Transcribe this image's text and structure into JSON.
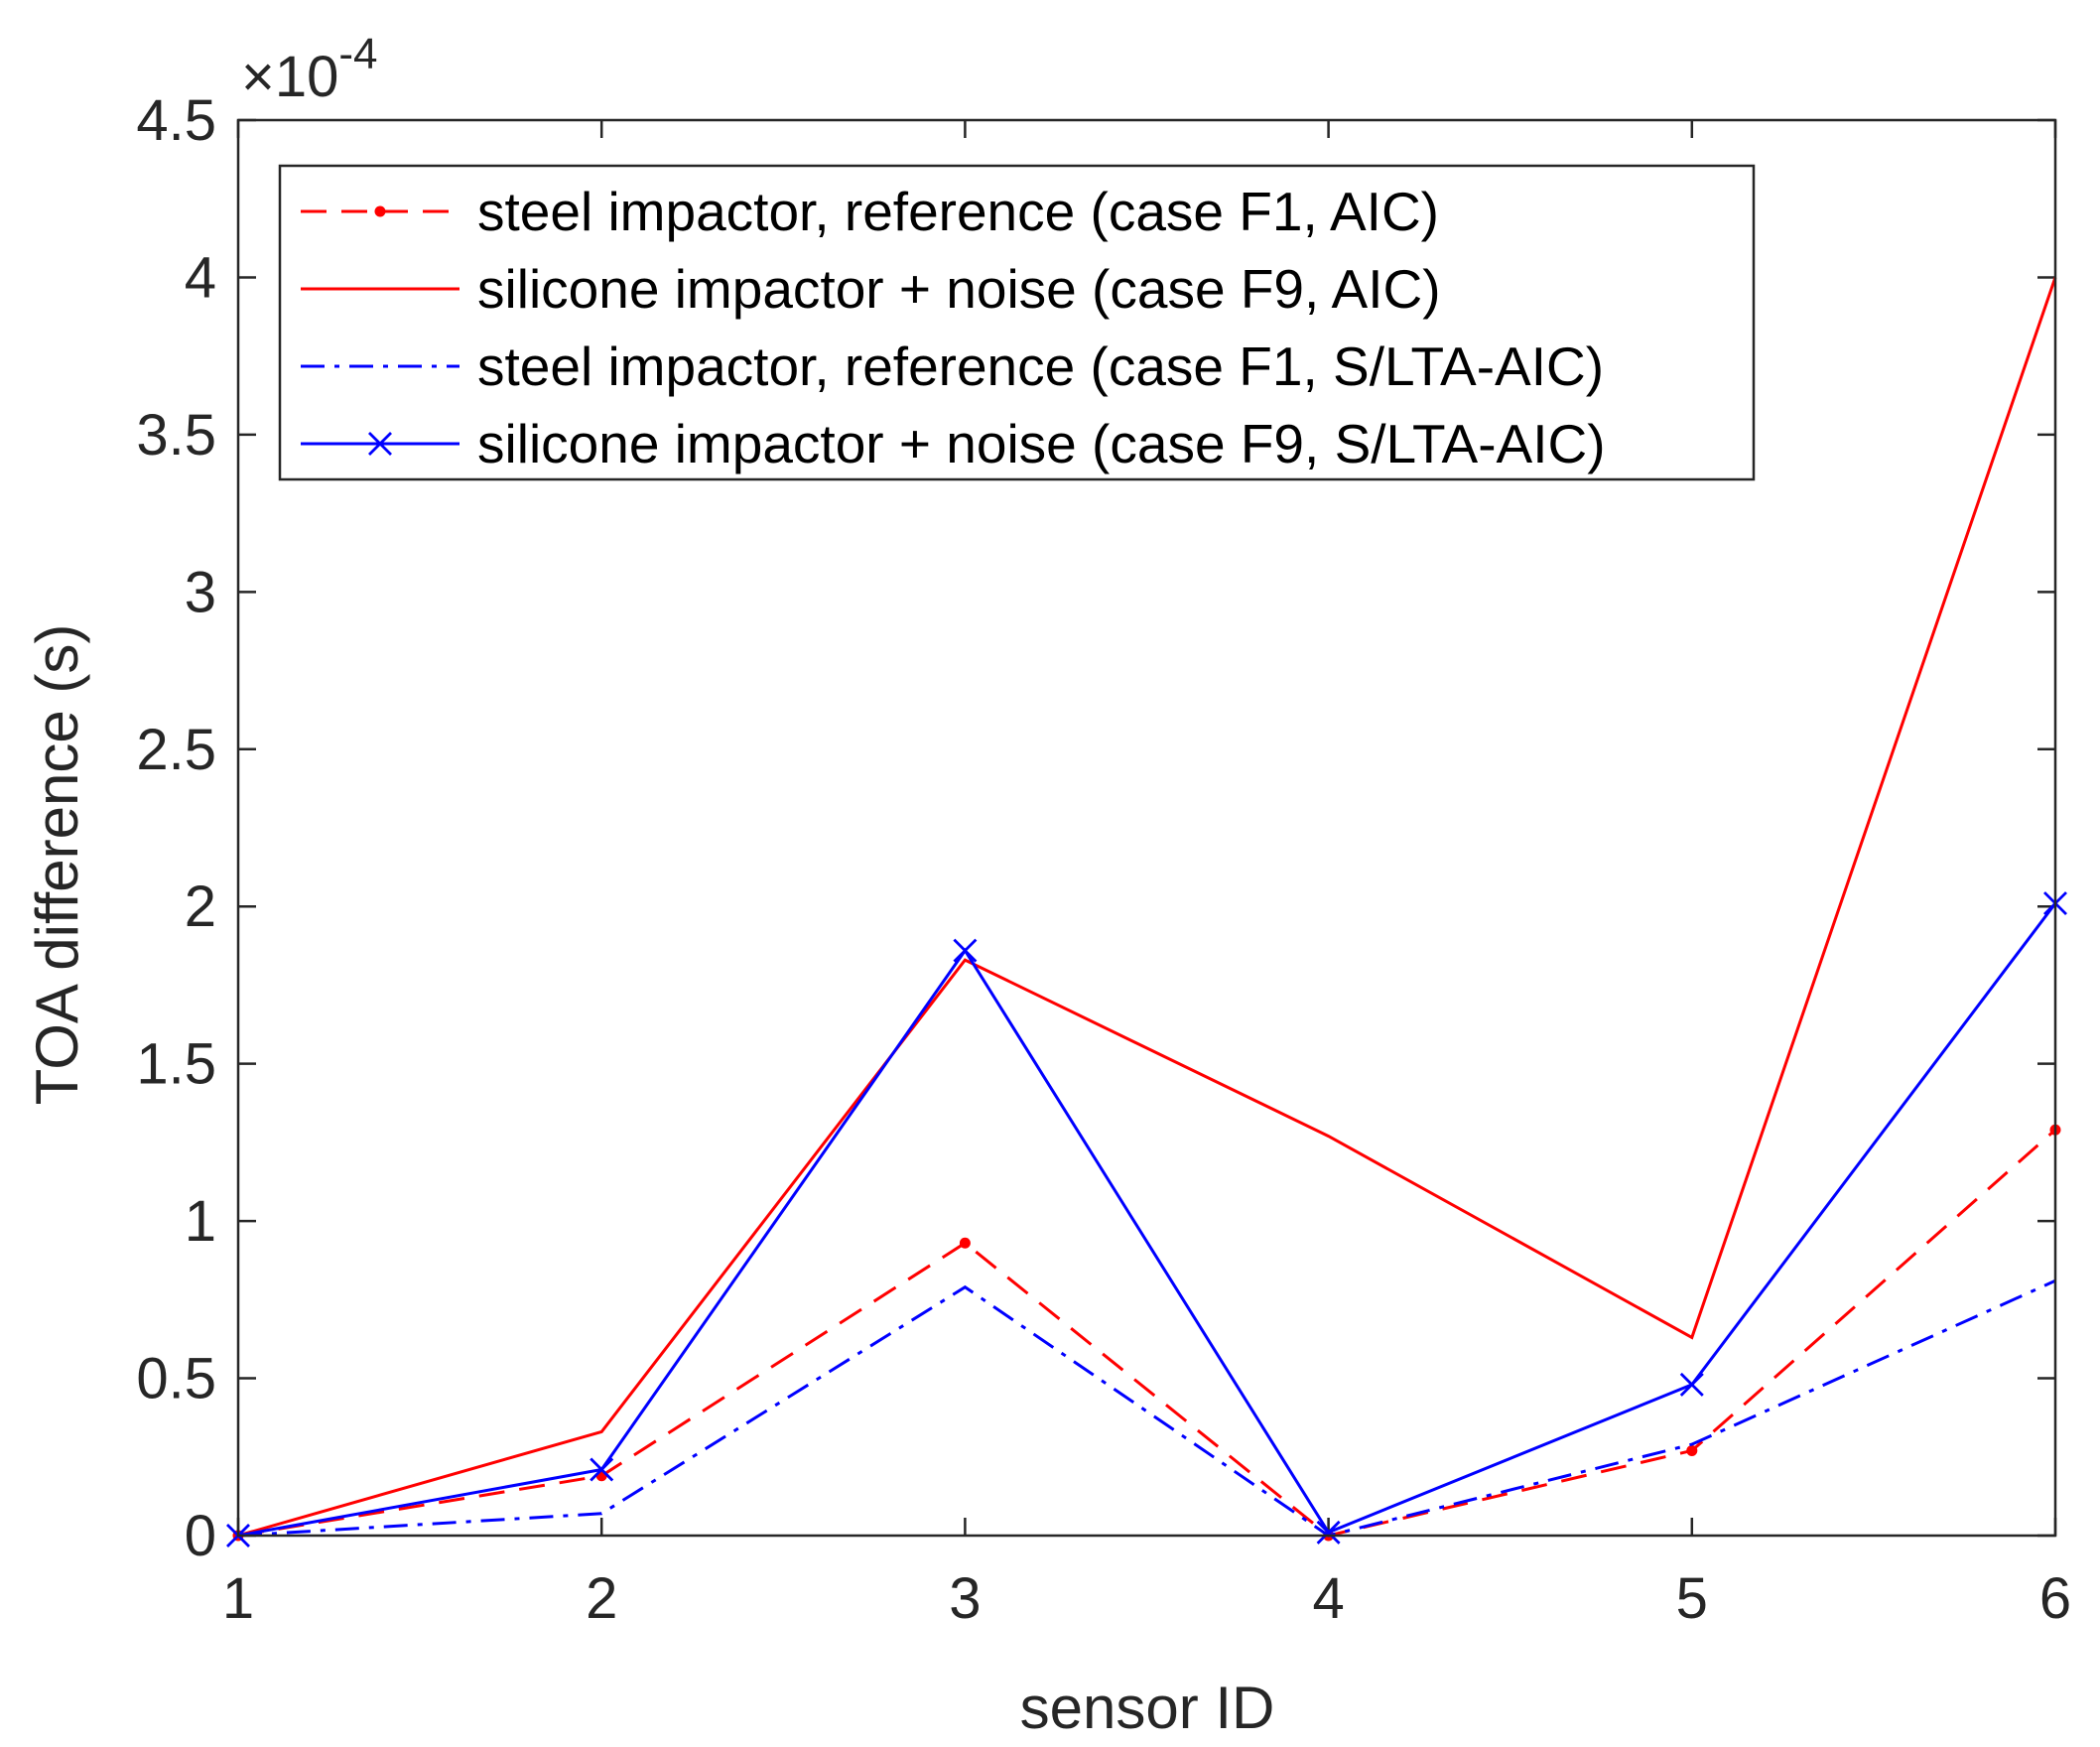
{
  "chart_data": {
    "type": "line",
    "xlabel": "sensor ID",
    "ylabel": "TOA difference (s)",
    "x_ticks": [
      "1",
      "2",
      "3",
      "4",
      "5",
      "6"
    ],
    "y_ticks": [
      "0",
      "0.5",
      "1",
      "1.5",
      "2",
      "2.5",
      "3",
      "3.5",
      "4",
      "4.5"
    ],
    "xlim": [
      1,
      6
    ],
    "ylim": [
      0,
      4.5
    ],
    "y_exponent": {
      "base": "×10",
      "power": "-4"
    },
    "grid": false,
    "legend_position": "top-left",
    "x": [
      1,
      2,
      3,
      4,
      5,
      6
    ],
    "series": [
      {
        "name": "steel impactor, reference (case F1, AIC)",
        "values": [
          0,
          0.19,
          0.93,
          0,
          0.27,
          1.29
        ],
        "color": "#ff0000",
        "line_style": "dashed",
        "marker": "dot"
      },
      {
        "name": "silicone impactor + noise (case F9, AIC)",
        "values": [
          0,
          0.33,
          1.83,
          1.27,
          0.63,
          4.0
        ],
        "color": "#ff0000",
        "line_style": "solid",
        "marker": "none"
      },
      {
        "name": "steel impactor, reference (case F1, S/LTA-AIC)",
        "values": [
          0,
          0.07,
          0.79,
          0,
          0.29,
          0.81
        ],
        "color": "#0000ff",
        "line_style": "dashdot",
        "marker": "none"
      },
      {
        "name": "silicone impactor + noise (case F9, S/LTA-AIC)",
        "values": [
          0,
          0.21,
          1.86,
          0.01,
          0.48,
          2.01
        ],
        "color": "#0000ff",
        "line_style": "solid",
        "marker": "x"
      }
    ]
  }
}
